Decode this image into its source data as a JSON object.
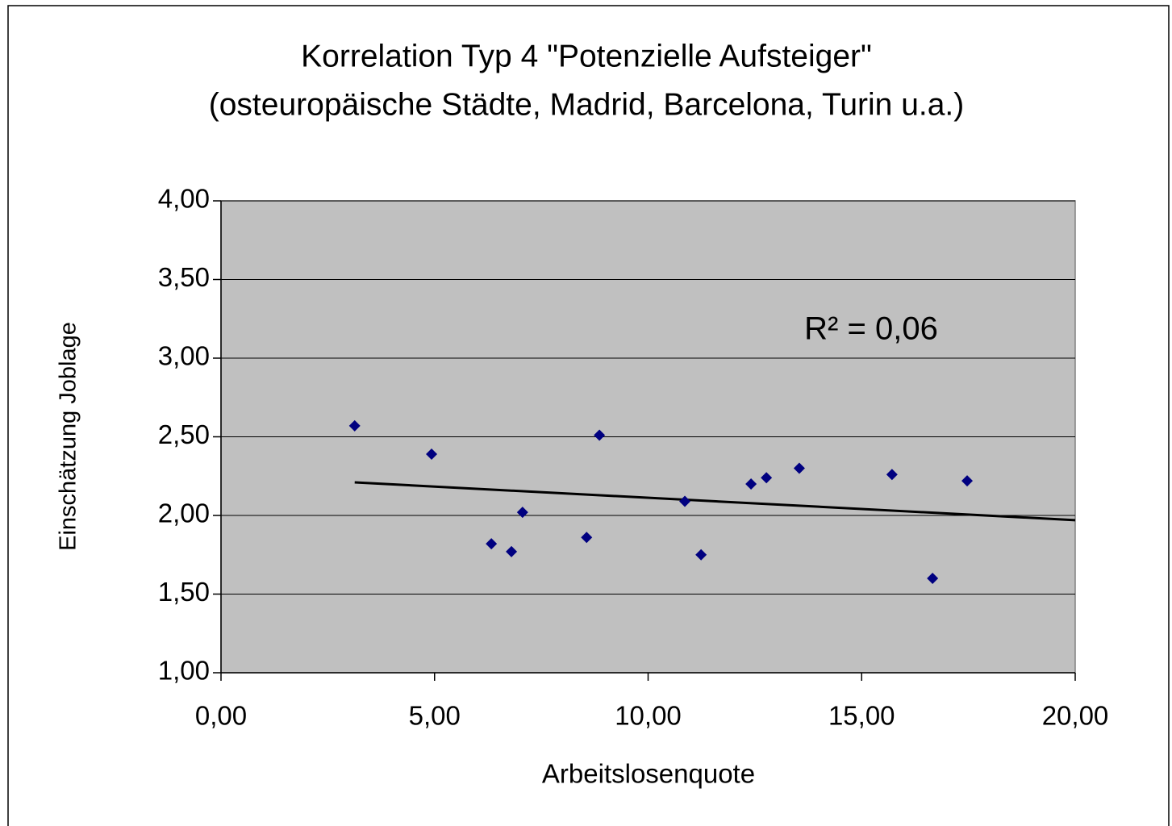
{
  "chart_data": {
    "type": "scatter",
    "title": [
      "Korrelation Typ 4 \"Potenzielle Aufsteiger\"",
      "(osteuropäische Städte, Madrid, Barcelona, Turin u.a.)"
    ],
    "xlabel": "Arbeitslosenquote",
    "ylabel": "Einschätzung Joblage",
    "annotation": "R² = 0,06",
    "series": [
      {
        "color": "#000080",
        "x": [
          3.13,
          4.93,
          6.33,
          6.8,
          7.06,
          8.56,
          8.86,
          10.86,
          11.24,
          12.41,
          12.77,
          13.54,
          15.71,
          16.66,
          17.47
        ],
        "values": [
          2.57,
          2.39,
          1.82,
          1.77,
          2.02,
          1.86,
          2.51,
          2.09,
          1.75,
          2.2,
          2.24,
          2.3,
          2.26,
          1.6,
          2.22
        ]
      }
    ],
    "trendline": {
      "color": "#000000",
      "x": [
        3.13,
        20
      ],
      "values": [
        2.21,
        1.97
      ]
    },
    "xlim": [
      0,
      20
    ],
    "xticks": [
      {
        "value": 0,
        "label": "0,00"
      },
      {
        "value": 5,
        "label": "5,00"
      },
      {
        "value": 10,
        "label": "10,00"
      },
      {
        "value": 15,
        "label": "15,00"
      },
      {
        "value": 20,
        "label": "20,00"
      }
    ],
    "ylim": [
      1,
      4
    ],
    "yticks": [
      {
        "value": 1,
        "label": "1,00"
      },
      {
        "value": 1.5,
        "label": "1,50"
      },
      {
        "value": 2,
        "label": "2,00"
      },
      {
        "value": 2.5,
        "label": "2,50"
      },
      {
        "value": 3,
        "label": "3,00"
      },
      {
        "value": 3.5,
        "label": "3,50"
      },
      {
        "value": 4,
        "label": "4,00"
      }
    ],
    "grid": true
  }
}
